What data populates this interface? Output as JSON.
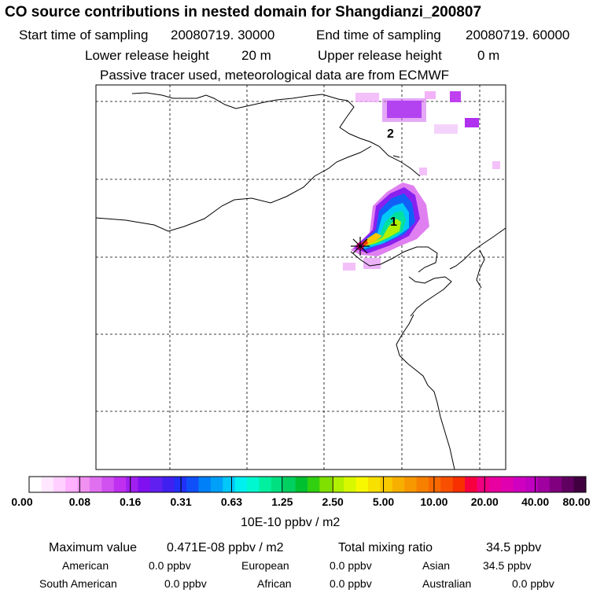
{
  "header": {
    "title": "CO  source contributions in nested domain for Shangdianzi_200807",
    "start_label": "Start time of sampling",
    "start_value": "20080719. 30000",
    "end_label": "End time of sampling",
    "end_value": "20080719. 60000",
    "lower_label": "Lower release height",
    "lower_value": "20 m",
    "upper_label": "Upper release height",
    "upper_value": "0 m",
    "tracer_note": "Passive tracer used, meteorological data are from ECMWF"
  },
  "map": {
    "markers": [
      "1",
      "2"
    ],
    "site_symbol": "star"
  },
  "colorbar": {
    "ticks": [
      "0.00",
      "0.08",
      "0.16",
      "0.31",
      "0.63",
      "1.25",
      "2.50",
      "5.00",
      "10.00",
      "20.00",
      "40.00",
      "80.00"
    ],
    "unit": "10E-10 ppbv / m2",
    "colors": [
      "#ffffff",
      "#ffe8ff",
      "#ffd0ff",
      "#ffb0ff",
      "#f090f0",
      "#e070f0",
      "#d050f0",
      "#c030f0",
      "#a020f0",
      "#8010f0",
      "#6020f0",
      "#4020f0",
      "#2030f8",
      "#1050f8",
      "#0080f8",
      "#00a0f8",
      "#00c8f8",
      "#00f0f0",
      "#00f8d0",
      "#00f0a0",
      "#00e080",
      "#00d060",
      "#00c030",
      "#30d010",
      "#80e000",
      "#b0f000",
      "#d8f800",
      "#f8f800",
      "#f8e000",
      "#f8c800",
      "#f8b000",
      "#f89800",
      "#f88000",
      "#f86800",
      "#f85000",
      "#f83000",
      "#f80040",
      "#f00080",
      "#e800a0",
      "#e000b0",
      "#d000c0",
      "#c000c0",
      "#a000a0",
      "#800080",
      "#600060",
      "#400040"
    ]
  },
  "summary": {
    "max_label": "Maximum value",
    "max_value": "0.471E-08 ppbv / m2",
    "total_label": "Total mixing ratio",
    "total_value": "34.5 ppbv",
    "regions": [
      {
        "label": "American",
        "value": "0.0 ppbv"
      },
      {
        "label": "European",
        "value": "0.0 ppbv"
      },
      {
        "label": "Asian",
        "value": "34.5 ppbv"
      },
      {
        "label": "South American",
        "value": "0.0 ppbv"
      },
      {
        "label": "African",
        "value": "0.0 ppbv"
      },
      {
        "label": "Australian",
        "value": "0.0 ppbv"
      }
    ]
  }
}
